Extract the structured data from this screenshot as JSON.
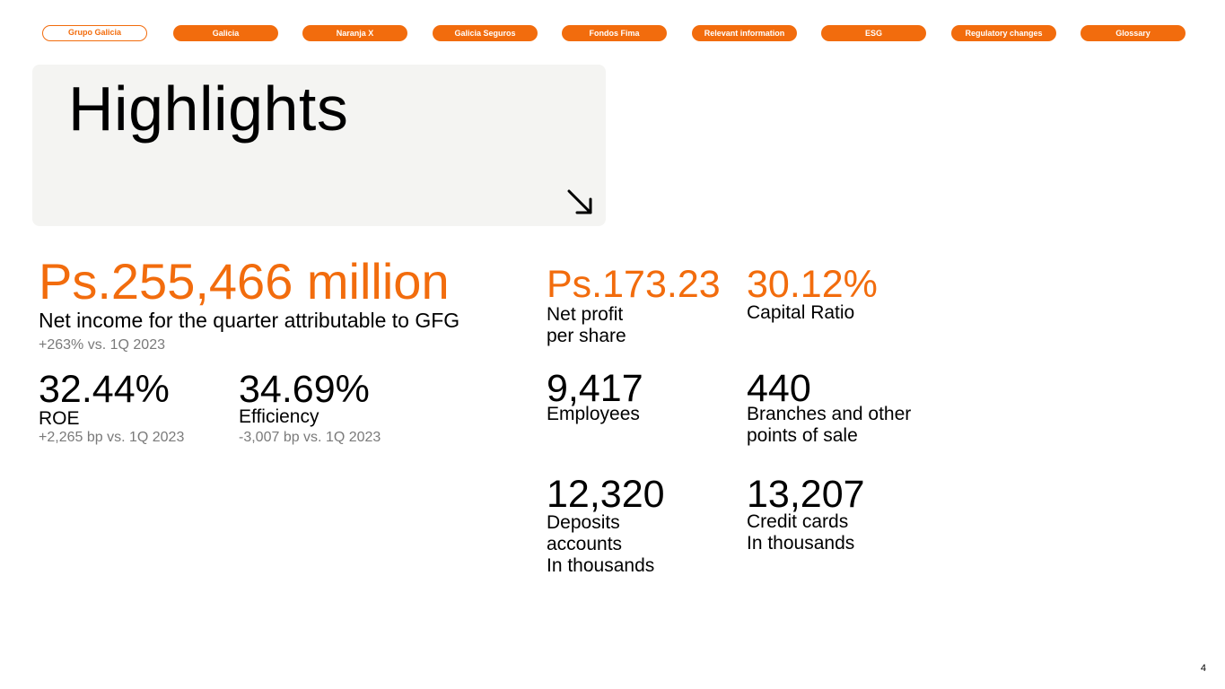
{
  "nav": {
    "tabs": [
      {
        "label": "Grupo Galicia",
        "active": true
      },
      {
        "label": "Galicia",
        "active": false
      },
      {
        "label": "Naranja X",
        "active": false
      },
      {
        "label": "Galicia Seguros",
        "active": false
      },
      {
        "label": "Fondos Fima",
        "active": false
      },
      {
        "label": "Relevant information",
        "active": false
      },
      {
        "label": "ESG",
        "active": false
      },
      {
        "label": "Regulatory changes",
        "active": false
      },
      {
        "label": "Glossary",
        "active": false
      }
    ]
  },
  "header": {
    "title": "Highlights",
    "arrow_icon": "arrow-down-right-icon"
  },
  "net_income": {
    "value": "Ps.255,466 million",
    "label": "Net income for the quarter attributable to GFG",
    "change": "+263% vs. 1Q 2023"
  },
  "roe": {
    "value": "32.44%",
    "label": "ROE",
    "change": "+2,265 bp vs. 1Q 2023"
  },
  "efficiency": {
    "value": "34.69%",
    "label": "Efficiency",
    "change": "-3,007 bp vs. 1Q 2023"
  },
  "net_profit_share": {
    "value": "Ps.173.23",
    "label_line1": "Net profit",
    "label_line2": "per share"
  },
  "capital_ratio": {
    "value": "30.12%",
    "label": "Capital Ratio"
  },
  "employees": {
    "value": "9,417",
    "label": "Employees"
  },
  "branches": {
    "value": "440",
    "label_line1": "Branches and other",
    "label_line2": "points of sale"
  },
  "deposits": {
    "value": "12,320",
    "label_line1": "Deposits",
    "label_line2": "accounts",
    "label_line3": "In thousands"
  },
  "credit_cards": {
    "value": "13,207",
    "label_line1": "Credit cards",
    "label_line2": "In thousands"
  },
  "page_number": "4",
  "colors": {
    "accent": "#f26c0d",
    "title_box": "#f4f4f2",
    "muted": "#7a7a7a"
  }
}
